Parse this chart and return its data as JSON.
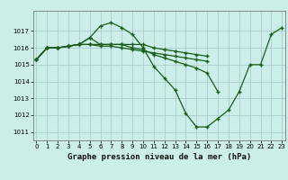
{
  "title": "Graphe pression niveau de la mer (hPa)",
  "background_color": "#cceee8",
  "grid_color": "#aacccc",
  "line_color": "#1a5c1a",
  "series": [
    [
      1015.3,
      1016.0,
      1016.0,
      1016.1,
      1016.2,
      1016.6,
      1017.3,
      1017.5,
      1017.2,
      1016.8,
      1016.0,
      1014.9,
      1014.2,
      1013.5,
      1012.1,
      1011.3,
      1011.3,
      1011.8,
      1012.3,
      1013.4,
      1015.0,
      1015.0,
      1016.8,
      1017.2
    ],
    [
      1015.3,
      1016.0,
      1016.0,
      1016.1,
      1016.2,
      1016.6,
      1016.2,
      1016.2,
      1016.2,
      1016.0,
      1015.9,
      1015.6,
      1015.4,
      1015.2,
      1015.0,
      1014.8,
      1014.5,
      1013.4,
      null,
      null,
      null,
      null,
      null,
      null
    ],
    [
      1015.3,
      1016.0,
      1016.0,
      1016.1,
      1016.2,
      1016.2,
      1016.2,
      1016.2,
      1016.2,
      1016.2,
      1016.2,
      1016.0,
      1015.9,
      1015.8,
      1015.7,
      1015.6,
      1015.5,
      null,
      null,
      null,
      null,
      null,
      null,
      null
    ],
    [
      1015.3,
      1016.0,
      1016.0,
      1016.1,
      1016.2,
      1016.2,
      1016.1,
      1016.1,
      1016.0,
      1015.9,
      1015.8,
      1015.7,
      1015.6,
      1015.5,
      1015.4,
      1015.3,
      1015.2,
      null,
      null,
      null,
      null,
      null,
      null,
      null
    ]
  ],
  "x_ticks": [
    0,
    1,
    2,
    3,
    4,
    5,
    6,
    7,
    8,
    9,
    10,
    11,
    12,
    13,
    14,
    15,
    16,
    17,
    18,
    19,
    20,
    21,
    22,
    23
  ],
  "y_ticks": [
    1011,
    1012,
    1013,
    1014,
    1015,
    1016,
    1017
  ],
  "ylim": [
    1010.5,
    1018.2
  ],
  "xlim": [
    -0.3,
    23.3
  ]
}
